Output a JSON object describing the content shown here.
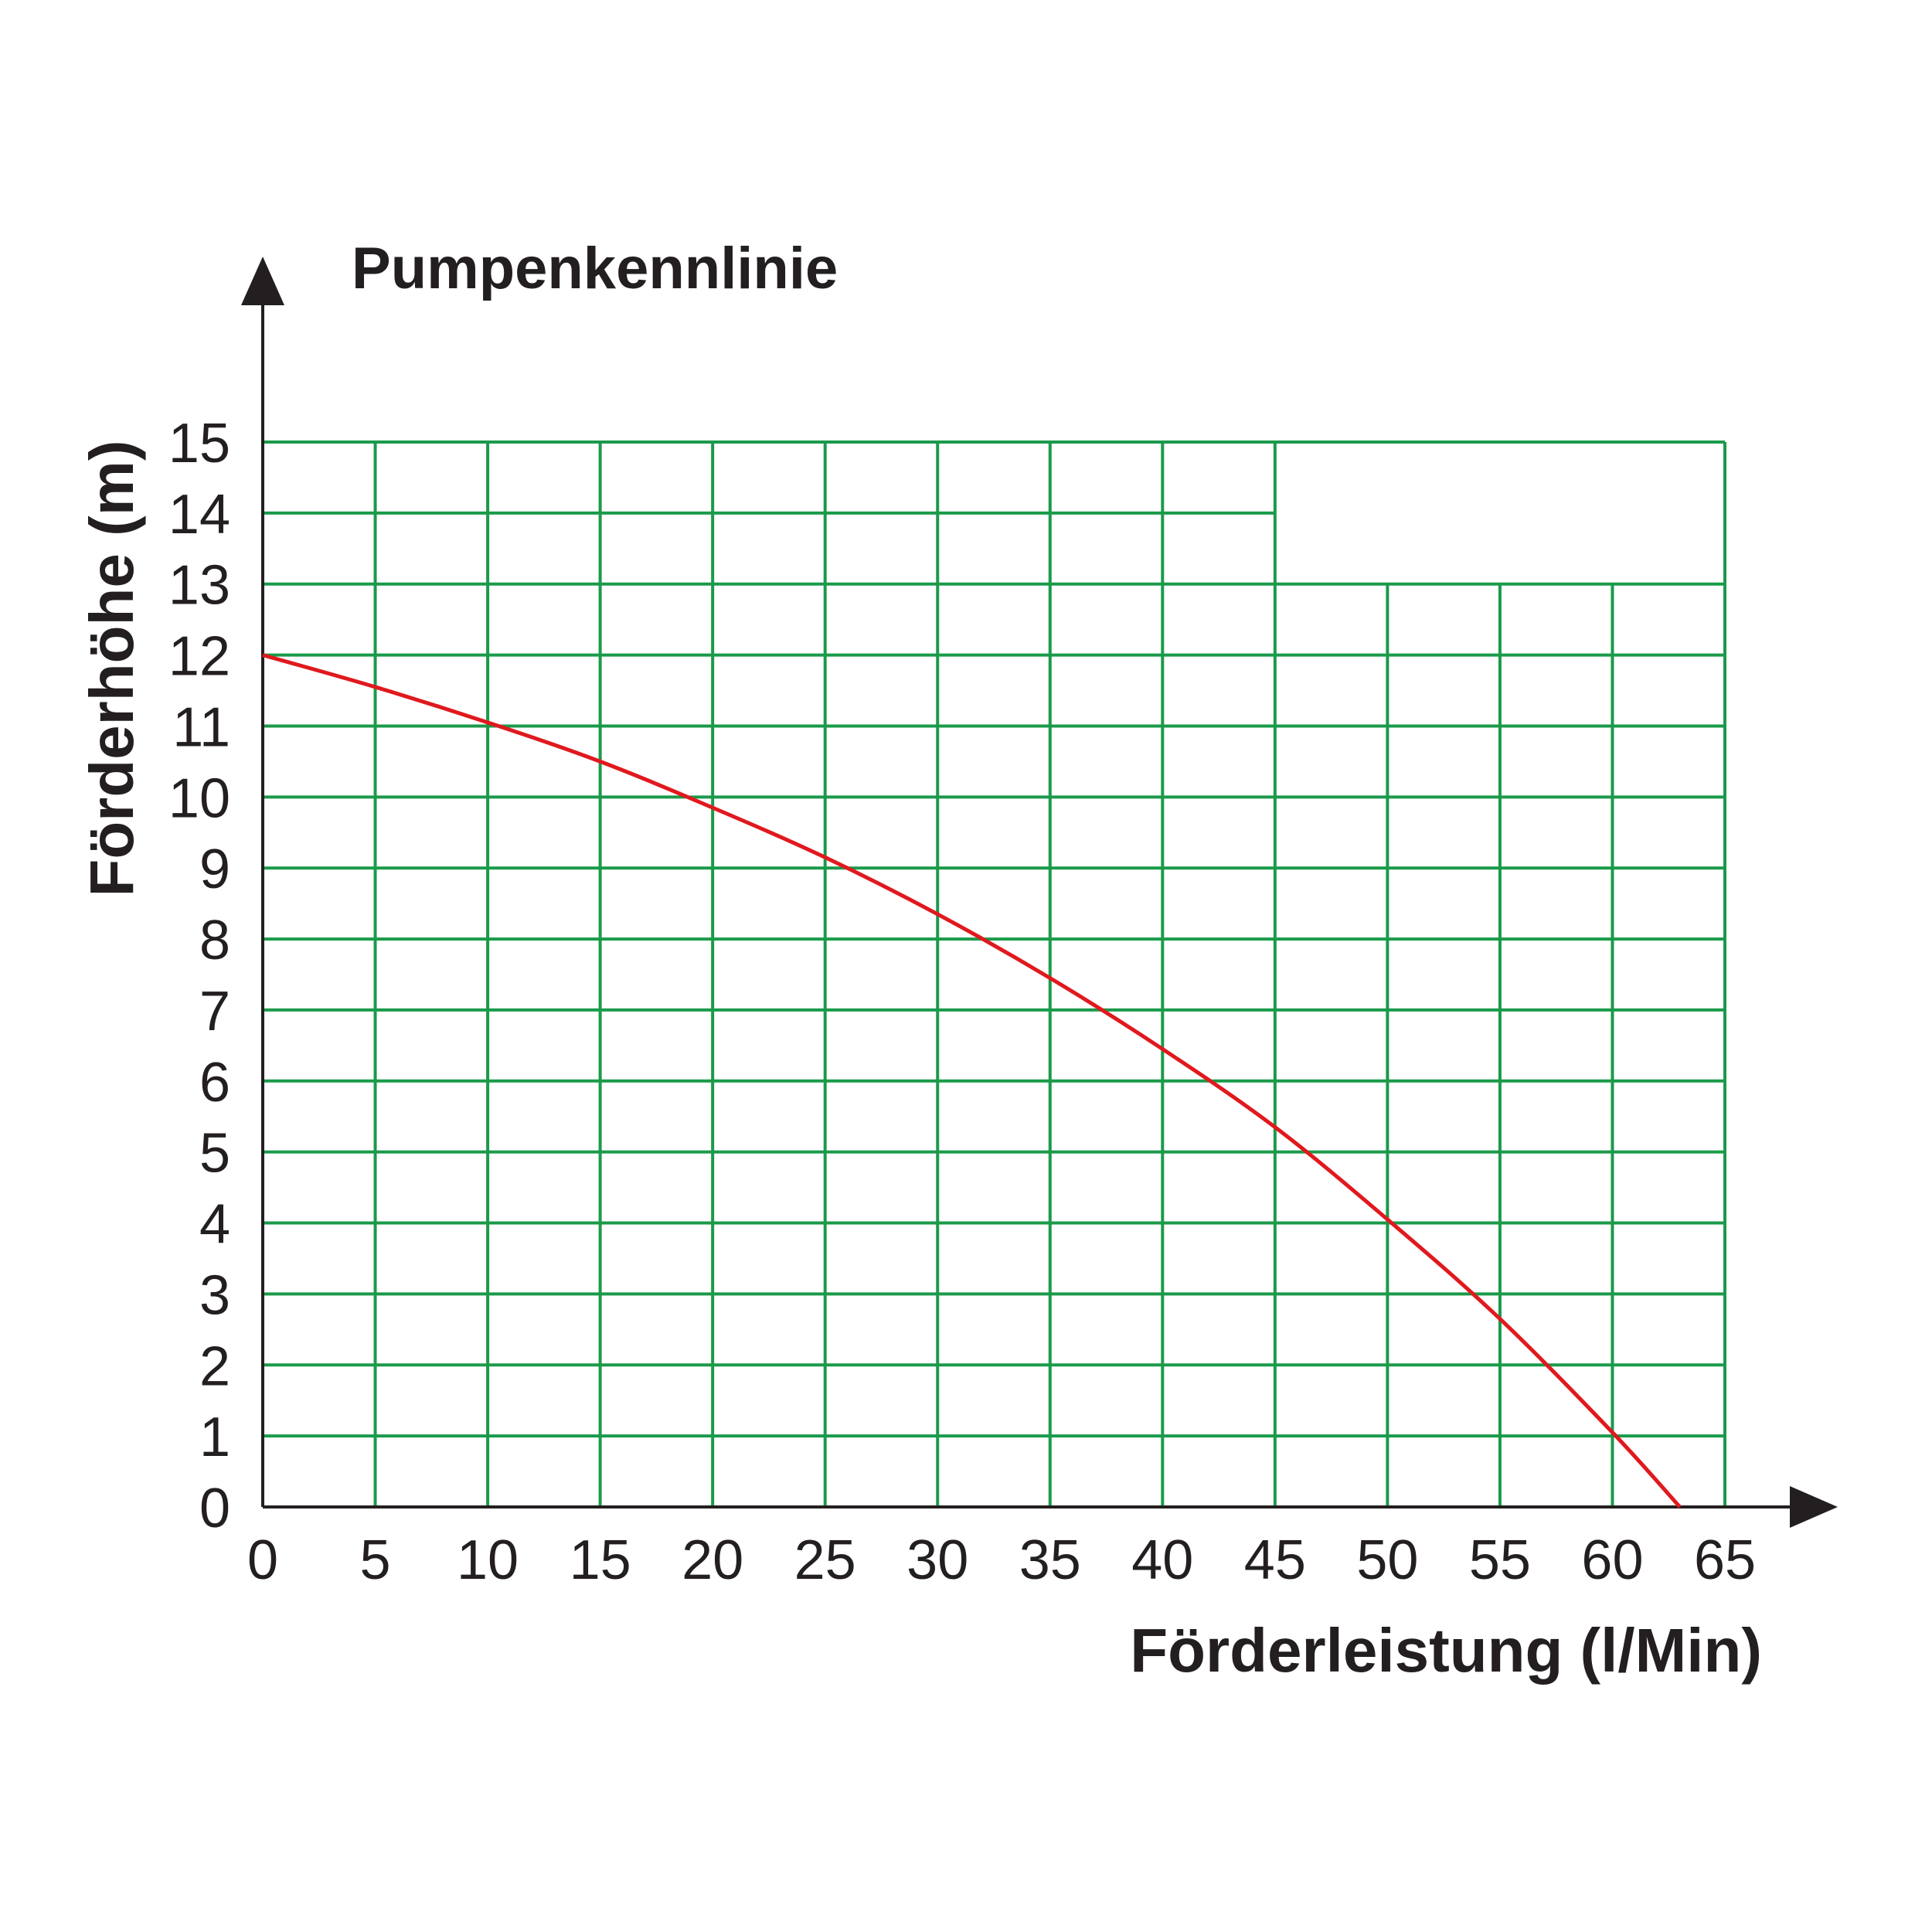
{
  "chart_data": {
    "type": "line",
    "title": "Pumpenkennlinie",
    "xlabel": "Förderleistung (l/Min)",
    "ylabel": "Förderhöhe (m)",
    "xlim": [
      0,
      65
    ],
    "ylim": [
      0,
      15
    ],
    "x_ticks": [
      "0",
      "5",
      "10",
      "15",
      "20",
      "25",
      "30",
      "35",
      "40",
      "45",
      "50",
      "55",
      "60",
      "65"
    ],
    "y_ticks": [
      "0",
      "1",
      "2",
      "3",
      "4",
      "5",
      "6",
      "7",
      "8",
      "9",
      "10",
      "11",
      "12",
      "13",
      "14",
      "15"
    ],
    "grid": true,
    "colors": {
      "grid": "#1a9a4a",
      "curve": "#e0191e",
      "axis": "#231f20"
    },
    "series": [
      {
        "x": [
          0,
          5,
          10,
          15,
          20,
          25,
          30,
          35,
          40,
          45,
          50,
          55,
          60,
          63
        ],
        "y": [
          12.0,
          11.55,
          11.05,
          10.5,
          9.85,
          9.15,
          8.35,
          7.45,
          6.45,
          5.35,
          4.05,
          2.65,
          1.05,
          0.0
        ]
      }
    ]
  }
}
